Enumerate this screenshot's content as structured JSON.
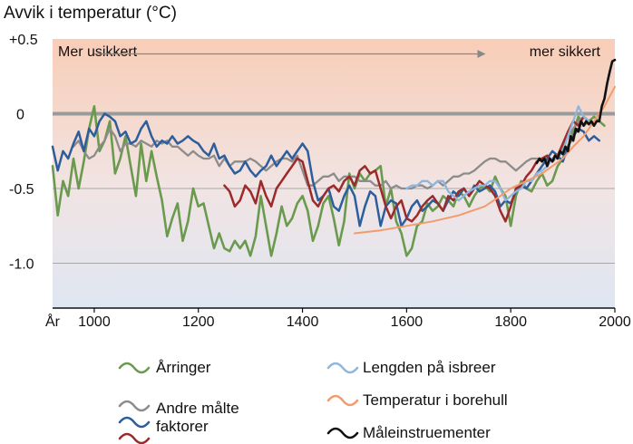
{
  "chart_data": {
    "type": "line",
    "title": "Avvik i temperatur (°C)",
    "x_axis_prefix": "År",
    "xlim": [
      920,
      2000
    ],
    "ylim": [
      -1.3,
      0.5
    ],
    "x_ticks": [
      {
        "value": 1000,
        "label": "1000"
      },
      {
        "value": 1200,
        "label": "1200"
      },
      {
        "value": 1400,
        "label": "1400"
      },
      {
        "value": 1600,
        "label": "1600"
      },
      {
        "value": 1800,
        "label": "1800"
      },
      {
        "value": 2000,
        "label": "2000"
      }
    ],
    "y_ticks": [
      {
        "value": 0.5,
        "label": "+0.5"
      },
      {
        "value": 0,
        "label": "0"
      },
      {
        "value": -0.5,
        "label": "-0.5"
      },
      {
        "value": -1.0,
        "label": "-1.0"
      }
    ],
    "zero_line": 0,
    "background_gradient": {
      "top": "#f8cdb7",
      "bottom": "#dfe6f3"
    },
    "annotations": {
      "left": "Mer usikkert",
      "right": "mer sikkert",
      "arrow_from_year": 1000,
      "arrow_to_year": 1750,
      "arrow_y": 0.4
    },
    "series": [
      {
        "name": "Årringer",
        "color": "#6a9a4e",
        "width": 2.6,
        "x": [
          920,
          930,
          940,
          950,
          960,
          970,
          980,
          990,
          1000,
          1010,
          1020,
          1030,
          1040,
          1050,
          1060,
          1070,
          1080,
          1090,
          1100,
          1110,
          1120,
          1130,
          1140,
          1150,
          1160,
          1170,
          1180,
          1190,
          1200,
          1210,
          1220,
          1230,
          1240,
          1250,
          1260,
          1270,
          1280,
          1290,
          1300,
          1310,
          1320,
          1330,
          1340,
          1350,
          1360,
          1370,
          1380,
          1390,
          1400,
          1410,
          1420,
          1430,
          1440,
          1450,
          1460,
          1470,
          1480,
          1490,
          1500,
          1510,
          1520,
          1530,
          1540,
          1550,
          1560,
          1570,
          1580,
          1590,
          1600,
          1610,
          1620,
          1630,
          1640,
          1650,
          1660,
          1670,
          1680,
          1690,
          1700,
          1710,
          1720,
          1730,
          1740,
          1750,
          1760,
          1770,
          1780,
          1790,
          1800,
          1810,
          1820,
          1830,
          1840,
          1850,
          1860,
          1870,
          1880,
          1890,
          1900,
          1910,
          1920,
          1930,
          1940,
          1950,
          1960,
          1970,
          1980
        ],
        "y": [
          -0.35,
          -0.68,
          -0.45,
          -0.55,
          -0.3,
          -0.5,
          -0.32,
          -0.1,
          0.05,
          -0.25,
          -0.18,
          -0.05,
          -0.4,
          -0.3,
          -0.15,
          -0.35,
          -0.55,
          -0.2,
          -0.45,
          -0.25,
          -0.42,
          -0.58,
          -0.82,
          -0.7,
          -0.6,
          -0.85,
          -0.72,
          -0.5,
          -0.62,
          -0.6,
          -0.75,
          -0.9,
          -0.8,
          -0.9,
          -0.92,
          -0.85,
          -0.9,
          -0.85,
          -0.95,
          -0.82,
          -0.55,
          -0.75,
          -0.95,
          -0.8,
          -0.62,
          -0.75,
          -0.7,
          -0.6,
          -0.55,
          -0.65,
          -0.85,
          -0.75,
          -0.6,
          -0.55,
          -0.7,
          -0.88,
          -0.72,
          -0.4,
          -0.5,
          -0.4,
          -0.45,
          -0.4,
          -0.38,
          -0.35,
          -0.62,
          -0.5,
          -0.72,
          -0.8,
          -0.95,
          -0.9,
          -0.75,
          -0.72,
          -0.6,
          -0.65,
          -0.62,
          -0.55,
          -0.58,
          -0.62,
          -0.52,
          -0.55,
          -0.62,
          -0.55,
          -0.5,
          -0.48,
          -0.52,
          -0.42,
          -0.5,
          -0.55,
          -0.75,
          -0.55,
          -0.45,
          -0.5,
          -0.52,
          -0.45,
          -0.4,
          -0.48,
          -0.45,
          -0.35,
          -0.3,
          -0.22,
          -0.12,
          -0.02,
          -0.08,
          -0.05,
          -0.02,
          -0.05,
          -0.08
        ]
      },
      {
        "name": "Andre målte faktorer",
        "color": "#8c8c8c",
        "width": 2.3,
        "x": [
          960,
          970,
          980,
          990,
          1000,
          1010,
          1020,
          1030,
          1040,
          1050,
          1060,
          1070,
          1080,
          1090,
          1100,
          1110,
          1120,
          1130,
          1140,
          1150,
          1160,
          1170,
          1180,
          1190,
          1200,
          1210,
          1220,
          1230,
          1240,
          1250,
          1260,
          1270,
          1280,
          1290,
          1300,
          1310,
          1320,
          1330,
          1340,
          1350,
          1360,
          1370,
          1380,
          1390,
          1400,
          1410,
          1420,
          1430,
          1440,
          1450,
          1460,
          1470,
          1480,
          1490,
          1500,
          1510,
          1520,
          1530,
          1540,
          1550,
          1560,
          1570,
          1580,
          1590,
          1600,
          1610,
          1620,
          1630,
          1640,
          1650,
          1660,
          1670,
          1680,
          1690,
          1700,
          1710,
          1720,
          1730,
          1740,
          1750,
          1760,
          1770,
          1780,
          1790,
          1800,
          1810,
          1820,
          1830,
          1840,
          1850,
          1860,
          1870,
          1880,
          1890,
          1900,
          1910,
          1920,
          1930,
          1940,
          1950,
          1960
        ],
        "y": [
          -0.22,
          -0.18,
          -0.25,
          -0.3,
          -0.28,
          -0.22,
          -0.18,
          -0.1,
          -0.15,
          -0.25,
          -0.2,
          -0.2,
          -0.22,
          -0.18,
          -0.2,
          -0.22,
          -0.18,
          -0.2,
          -0.18,
          -0.22,
          -0.22,
          -0.25,
          -0.28,
          -0.25,
          -0.28,
          -0.3,
          -0.3,
          -0.28,
          -0.35,
          -0.3,
          -0.35,
          -0.32,
          -0.32,
          -0.32,
          -0.3,
          -0.32,
          -0.35,
          -0.38,
          -0.35,
          -0.32,
          -0.3,
          -0.3,
          -0.32,
          -0.28,
          -0.38,
          -0.48,
          -0.48,
          -0.45,
          -0.42,
          -0.42,
          -0.4,
          -0.45,
          -0.42,
          -0.42,
          -0.42,
          -0.45,
          -0.45,
          -0.45,
          -0.48,
          -0.48,
          -0.45,
          -0.5,
          -0.48,
          -0.5,
          -0.5,
          -0.5,
          -0.48,
          -0.48,
          -0.5,
          -0.48,
          -0.45,
          -0.48,
          -0.45,
          -0.42,
          -0.42,
          -0.4,
          -0.4,
          -0.38,
          -0.35,
          -0.32,
          -0.3,
          -0.3,
          -0.32,
          -0.32,
          -0.35,
          -0.38,
          -0.35,
          -0.32,
          -0.3,
          -0.3,
          -0.3,
          -0.32,
          -0.3,
          -0.28,
          -0.22,
          -0.15,
          -0.1,
          -0.05,
          -0.02,
          -0.05,
          -0.08
        ]
      },
      {
        "name": "Andre målte faktorer (blå)",
        "color": "#2d5e9c",
        "width": 2.5,
        "x": [
          920,
          930,
          940,
          950,
          960,
          970,
          980,
          990,
          1000,
          1010,
          1020,
          1030,
          1040,
          1050,
          1060,
          1070,
          1080,
          1090,
          1100,
          1110,
          1120,
          1130,
          1140,
          1150,
          1160,
          1170,
          1180,
          1190,
          1200,
          1210,
          1220,
          1230,
          1240,
          1250,
          1260,
          1270,
          1280,
          1290,
          1300,
          1310,
          1320,
          1330,
          1340,
          1350,
          1360,
          1370,
          1380,
          1390,
          1400,
          1410,
          1420,
          1430,
          1440,
          1450,
          1460,
          1470,
          1480,
          1490,
          1500,
          1510,
          1520,
          1530,
          1540,
          1550,
          1560,
          1570,
          1580,
          1590,
          1600,
          1610,
          1620,
          1630,
          1640,
          1650,
          1660,
          1670,
          1680,
          1690,
          1700,
          1710,
          1720,
          1730,
          1740,
          1750,
          1760,
          1770,
          1780,
          1790,
          1800,
          1810,
          1820,
          1830,
          1840,
          1850,
          1860,
          1870,
          1880,
          1890,
          1900,
          1910,
          1920,
          1930,
          1940,
          1950,
          1960,
          1970
        ],
        "y": [
          -0.22,
          -0.38,
          -0.25,
          -0.3,
          -0.2,
          -0.12,
          -0.25,
          -0.1,
          -0.15,
          -0.05,
          0.0,
          -0.02,
          -0.05,
          -0.15,
          -0.12,
          -0.2,
          -0.18,
          -0.1,
          -0.05,
          -0.15,
          -0.22,
          -0.18,
          -0.2,
          -0.15,
          -0.2,
          -0.18,
          -0.15,
          -0.18,
          -0.2,
          -0.25,
          -0.28,
          -0.2,
          -0.3,
          -0.28,
          -0.35,
          -0.4,
          -0.38,
          -0.32,
          -0.38,
          -0.42,
          -0.38,
          -0.35,
          -0.28,
          -0.35,
          -0.3,
          -0.25,
          -0.3,
          -0.25,
          -0.2,
          -0.25,
          -0.45,
          -0.58,
          -0.55,
          -0.5,
          -0.62,
          -0.65,
          -0.55,
          -0.48,
          -0.55,
          -0.75,
          -0.62,
          -0.52,
          -0.55,
          -0.75,
          -0.62,
          -0.58,
          -0.6,
          -0.75,
          -0.7,
          -0.62,
          -0.58,
          -0.65,
          -0.62,
          -0.58,
          -0.6,
          -0.65,
          -0.58,
          -0.52,
          -0.55,
          -0.5,
          -0.55,
          -0.48,
          -0.52,
          -0.5,
          -0.48,
          -0.52,
          -0.62,
          -0.58,
          -0.6,
          -0.52,
          -0.48,
          -0.5,
          -0.45,
          -0.4,
          -0.35,
          -0.3,
          -0.25,
          -0.28,
          -0.32,
          -0.22,
          -0.15,
          -0.1,
          -0.12,
          -0.18,
          -0.15,
          -0.18
        ]
      },
      {
        "name": "Andre målte faktorer (rød)",
        "color": "#9b2a2a",
        "width": 2.5,
        "x": [
          1250,
          1260,
          1270,
          1280,
          1290,
          1300,
          1310,
          1320,
          1330,
          1340,
          1350,
          1360,
          1370,
          1380,
          1390,
          1400,
          1410,
          1420,
          1430,
          1440,
          1450,
          1460,
          1470,
          1480,
          1490,
          1500,
          1510,
          1520,
          1530,
          1540,
          1550,
          1560,
          1570,
          1580,
          1590,
          1600,
          1610,
          1620,
          1630,
          1640,
          1650,
          1660,
          1670,
          1680,
          1690,
          1700,
          1710,
          1720,
          1730,
          1740,
          1750,
          1760,
          1770,
          1780,
          1790,
          1800,
          1810,
          1820,
          1830,
          1840,
          1850,
          1860,
          1870,
          1880,
          1890,
          1900,
          1910,
          1920,
          1930,
          1940,
          1950
        ],
        "y": [
          -0.48,
          -0.52,
          -0.62,
          -0.58,
          -0.48,
          -0.52,
          -0.6,
          -0.45,
          -0.55,
          -0.62,
          -0.5,
          -0.45,
          -0.4,
          -0.35,
          -0.3,
          -0.32,
          -0.45,
          -0.58,
          -0.62,
          -0.55,
          -0.5,
          -0.48,
          -0.52,
          -0.45,
          -0.42,
          -0.48,
          -0.38,
          -0.35,
          -0.4,
          -0.38,
          -0.5,
          -0.62,
          -0.7,
          -0.62,
          -0.58,
          -0.7,
          -0.72,
          -0.68,
          -0.62,
          -0.58,
          -0.55,
          -0.6,
          -0.65,
          -0.55,
          -0.58,
          -0.52,
          -0.5,
          -0.55,
          -0.5,
          -0.45,
          -0.48,
          -0.5,
          -0.55,
          -0.65,
          -0.72,
          -0.62,
          -0.5,
          -0.48,
          -0.42,
          -0.38,
          -0.32,
          -0.3,
          -0.28,
          -0.32,
          -0.28,
          -0.2,
          -0.12,
          -0.05,
          -0.08,
          -0.02,
          -0.05
        ]
      },
      {
        "name": "Lengden på isbreer",
        "color": "#8fb6dc",
        "width": 2.3,
        "x": [
          1600,
          1610,
          1620,
          1630,
          1640,
          1650,
          1660,
          1670,
          1680,
          1690,
          1700,
          1710,
          1720,
          1730,
          1740,
          1750,
          1760,
          1770,
          1780,
          1790,
          1800,
          1810,
          1820,
          1830,
          1840,
          1850,
          1860,
          1870,
          1880,
          1890,
          1900,
          1910,
          1920,
          1930,
          1940,
          1950
        ],
        "y": [
          -0.5,
          -0.48,
          -0.48,
          -0.45,
          -0.45,
          -0.48,
          -0.45,
          -0.45,
          -0.52,
          -0.55,
          -0.58,
          -0.55,
          -0.52,
          -0.5,
          -0.48,
          -0.48,
          -0.45,
          -0.45,
          -0.5,
          -0.58,
          -0.55,
          -0.52,
          -0.5,
          -0.45,
          -0.45,
          -0.4,
          -0.38,
          -0.35,
          -0.3,
          -0.3,
          -0.25,
          -0.15,
          -0.05,
          0.05,
          -0.02,
          -0.05
        ]
      },
      {
        "name": "Temperatur i borehull",
        "color": "#f29b6f",
        "width": 2.0,
        "x": [
          1500,
          1550,
          1600,
          1650,
          1700,
          1750,
          1780,
          1800,
          1830,
          1860,
          1880,
          1900,
          1920,
          1940,
          1960,
          1980,
          2000
        ],
        "y": [
          -0.8,
          -0.78,
          -0.75,
          -0.72,
          -0.68,
          -0.62,
          -0.55,
          -0.5,
          -0.45,
          -0.4,
          -0.35,
          -0.3,
          -0.22,
          -0.15,
          -0.05,
          0.05,
          0.18
        ]
      },
      {
        "name": "Måleinstruementer",
        "color": "#111111",
        "width": 2.6,
        "x": [
          1850,
          1855,
          1860,
          1865,
          1870,
          1875,
          1880,
          1885,
          1890,
          1895,
          1900,
          1905,
          1910,
          1915,
          1920,
          1925,
          1930,
          1935,
          1940,
          1945,
          1950,
          1955,
          1960,
          1965,
          1970,
          1975,
          1980,
          1985,
          1990,
          1995,
          2000
        ],
        "y": [
          -0.33,
          -0.3,
          -0.32,
          -0.3,
          -0.35,
          -0.3,
          -0.32,
          -0.28,
          -0.3,
          -0.25,
          -0.27,
          -0.22,
          -0.25,
          -0.15,
          -0.18,
          -0.1,
          -0.12,
          -0.05,
          -0.08,
          -0.05,
          -0.07,
          -0.05,
          -0.08,
          -0.05,
          -0.05,
          0.05,
          0.1,
          0.2,
          0.28,
          0.35,
          0.36
        ]
      }
    ],
    "legend": [
      {
        "label": "Årringer",
        "colors": [
          "#6a9a4e"
        ]
      },
      {
        "label": "Andre målte faktorer",
        "colors": [
          "#8c8c8c",
          "#2d5e9c",
          "#9b2a2a"
        ]
      },
      {
        "label": "Lengden på isbreer",
        "colors": [
          "#8fb6dc"
        ]
      },
      {
        "label": "Temperatur i borehull",
        "colors": [
          "#f29b6f"
        ]
      },
      {
        "label": "Måleinstruementer",
        "colors": [
          "#111111"
        ]
      }
    ],
    "legend_line1": "Andre målte",
    "legend_line2": "faktorer"
  }
}
